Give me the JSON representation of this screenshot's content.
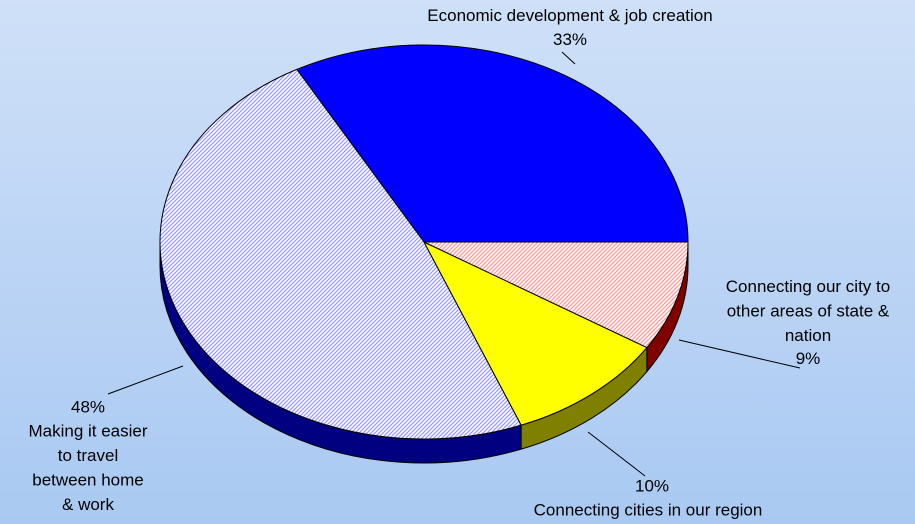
{
  "chart_data": {
    "type": "pie3d",
    "categories": [
      "Economic development & job creation",
      "Making it easier to travel between home & work",
      "Connecting cities in our region",
      "Connecting our city to other areas of state & nation"
    ],
    "values": [
      33,
      48,
      10,
      9
    ],
    "value_labels": [
      "33%",
      "48%",
      "10%",
      "9%"
    ],
    "colors": [
      "#0000ff",
      "#9999ff",
      "#ffff00",
      "#ff9999"
    ],
    "side_colors": [
      "#000080",
      "#000080",
      "#808000",
      "#800000"
    ],
    "hatched": [
      false,
      true,
      false,
      true
    ]
  }
}
